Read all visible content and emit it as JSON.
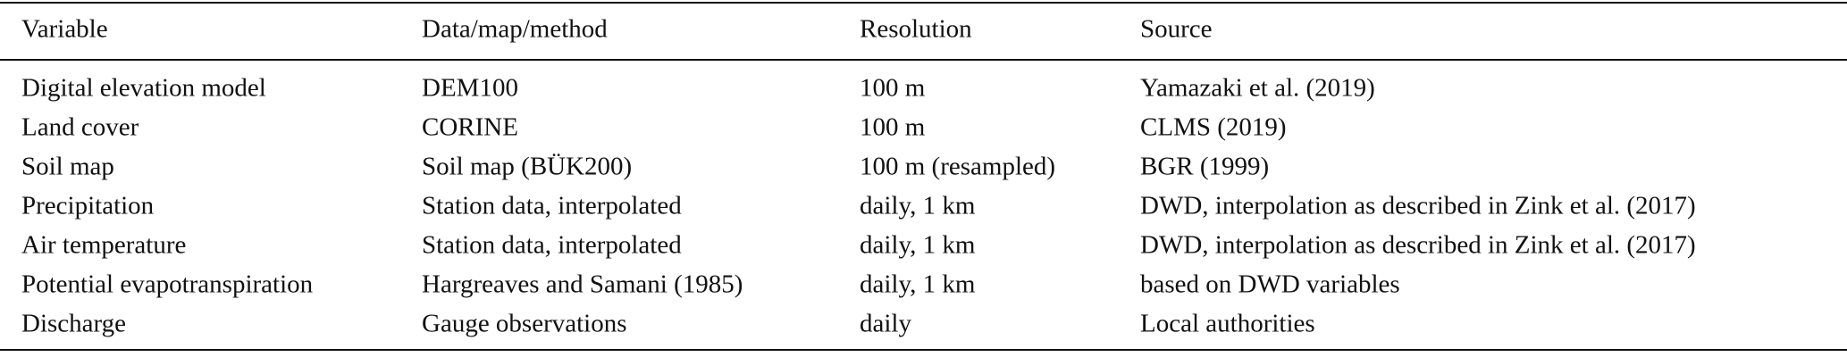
{
  "table": {
    "header": [
      "Variable",
      "Data/map/method",
      "Resolution",
      "Source"
    ],
    "rows": [
      [
        "Digital elevation model",
        "DEM100",
        "100 m",
        "Yamazaki et al. (2019)"
      ],
      [
        "Land cover",
        "CORINE",
        "100 m",
        "CLMS (2019)"
      ],
      [
        "Soil map",
        "Soil map (BÜK200)",
        "100 m (resampled)",
        "BGR (1999)"
      ],
      [
        "Precipitation",
        "Station data, interpolated",
        "daily, 1 km",
        "DWD, interpolation as described in Zink et al. (2017)"
      ],
      [
        "Air temperature",
        "Station data, interpolated",
        "daily, 1 km",
        "DWD, interpolation as described in Zink et al. (2017)"
      ],
      [
        "Potential evapotranspiration",
        "Hargreaves and Samani (1985)",
        "daily, 1 km",
        "based on DWD variables"
      ],
      [
        "Discharge",
        "Gauge observations",
        "daily",
        "Local authorities"
      ]
    ]
  }
}
